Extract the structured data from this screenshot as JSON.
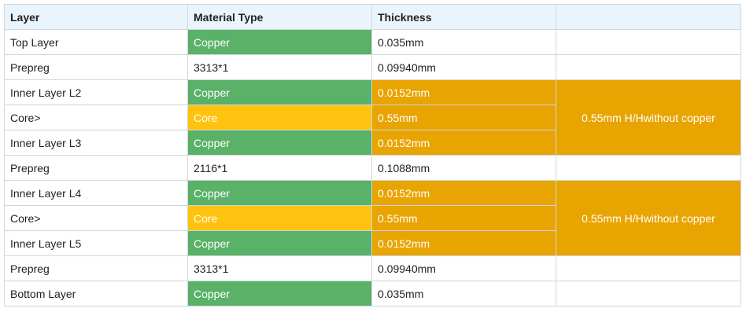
{
  "headers": [
    "Layer",
    "Material Type",
    "Thickness",
    ""
  ],
  "rows": [
    {
      "layer": "Top Layer",
      "material": "Copper",
      "thickness": "0.035mm"
    },
    {
      "layer": "Prepreg",
      "material": "3313*1",
      "thickness": "0.09940mm"
    },
    {
      "layer": "Inner Layer L2",
      "material": "Copper",
      "thickness": "0.0152mm"
    },
    {
      "layer": "Core>",
      "material": "Core",
      "thickness": "0.55mm"
    },
    {
      "layer": "Inner Layer L3",
      "material": "Copper",
      "thickness": "0.0152mm"
    },
    {
      "layer": "Prepreg",
      "material": "2116*1",
      "thickness": "0.1088mm"
    },
    {
      "layer": "Inner Layer L4",
      "material": "Copper",
      "thickness": "0.0152mm"
    },
    {
      "layer": "Core>",
      "material": "Core",
      "thickness": "0.55mm"
    },
    {
      "layer": "Inner Layer L5",
      "material": "Copper",
      "thickness": "0.0152mm"
    },
    {
      "layer": "Prepreg",
      "material": "3313*1",
      "thickness": "0.09940mm"
    },
    {
      "layer": "Bottom Layer",
      "material": "Copper",
      "thickness": "0.035mm"
    }
  ],
  "core_groups": [
    {
      "label": "0.55mm H/Hwithout copper"
    },
    {
      "label": "0.55mm H/Hwithout copper"
    }
  ],
  "colors": {
    "copper": "#5ab168",
    "core": "#ffc20e",
    "core_stack_highlight": "#e8a400",
    "header_bg": "#eaf4fd"
  }
}
